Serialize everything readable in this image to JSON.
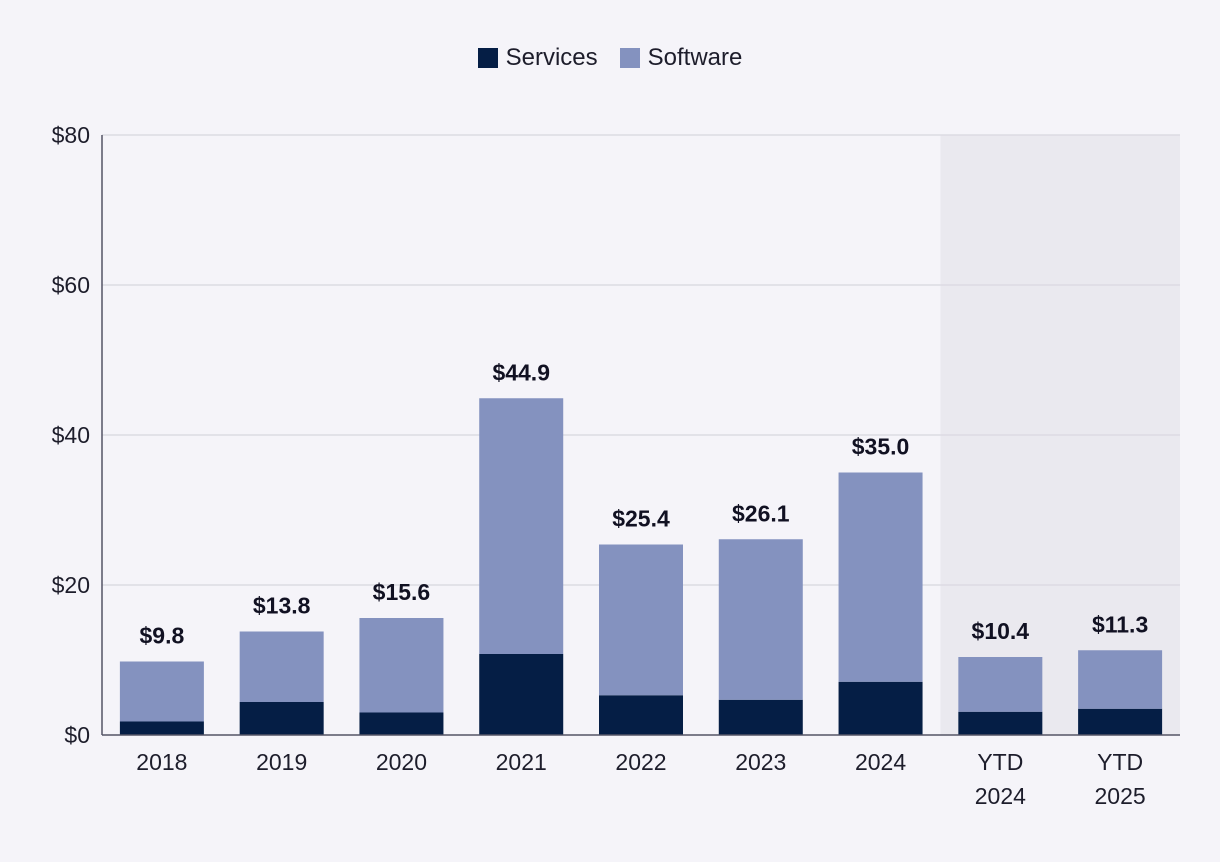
{
  "chart_data": {
    "type": "bar",
    "stacked": true,
    "title": "",
    "xlabel": "",
    "ylabel": "",
    "ylim": [
      0,
      80
    ],
    "yticks": [
      0,
      20,
      40,
      60,
      80
    ],
    "ytick_labels": [
      "$0",
      "$20",
      "$40",
      "$60",
      "$80"
    ],
    "categories": [
      "2018",
      "2019",
      "2020",
      "2021",
      "2022",
      "2023",
      "2024",
      "YTD 2024",
      "YTD 2025"
    ],
    "category_lines": [
      [
        "2018"
      ],
      [
        "2019"
      ],
      [
        "2020"
      ],
      [
        "2021"
      ],
      [
        "2022"
      ],
      [
        "2023"
      ],
      [
        "2024"
      ],
      [
        "YTD",
        "2024"
      ],
      [
        "YTD",
        "2025"
      ]
    ],
    "series": [
      {
        "name": "Services",
        "color": "#051e45",
        "values": [
          1.8,
          4.4,
          3.0,
          10.8,
          5.3,
          4.7,
          7.1,
          3.1,
          3.5
        ]
      },
      {
        "name": "Software",
        "color": "#8492bf",
        "values": [
          8.0,
          9.4,
          12.6,
          34.1,
          20.1,
          21.4,
          27.9,
          7.3,
          7.8
        ]
      }
    ],
    "totals": [
      9.8,
      13.8,
      15.6,
      44.9,
      25.4,
      26.1,
      35.0,
      10.4,
      11.3
    ],
    "total_labels": [
      "$9.8",
      "$13.8",
      "$15.6",
      "$44.9",
      "$25.4",
      "$26.1",
      "$35.0",
      "$10.4",
      "$11.3"
    ],
    "shaded_categories": [
      "YTD 2024",
      "YTD 2025"
    ],
    "shade_color": "#eae9ef",
    "grid": true,
    "legend_position": "top-center"
  }
}
